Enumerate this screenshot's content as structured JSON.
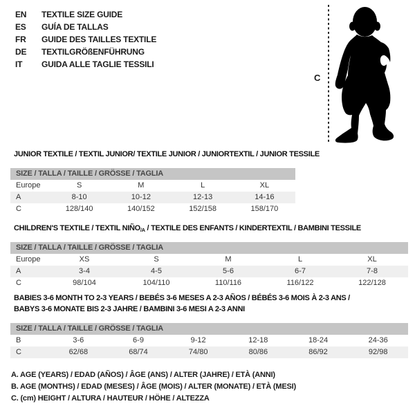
{
  "header": {
    "languages": [
      {
        "code": "EN",
        "label": "TEXTILE SIZE GUIDE"
      },
      {
        "code": "ES",
        "label": "GUÍA DE TALLAS"
      },
      {
        "code": "FR",
        "label": "GUIDE DES TAILLES TEXTILE"
      },
      {
        "code": "DE",
        "label": "TEXTILGRÖßENFÜHRUNG"
      },
      {
        "code": "IT",
        "label": "GUIDA ALLE TAGLIE TESSILI"
      }
    ]
  },
  "figure": {
    "height_label": "C",
    "silhouette": "baby-toddler-silhouette"
  },
  "tables": [
    {
      "title": "JUNIOR TEXTILE / TEXTIL JUNIOR/ TEXTILE JUNIOR / JUNIORTEXTIL / JUNIOR TESSILE",
      "size_header": "SIZE / TALLA / TAILLE / GRÖSSE / TAGLIA",
      "rows": [
        {
          "label": "Europe",
          "values": [
            "S",
            "M",
            "L",
            "XL"
          ]
        },
        {
          "label": "A",
          "values": [
            "8-10",
            "10-12",
            "12-13",
            "14-16"
          ]
        },
        {
          "label": "C",
          "values": [
            "128/140",
            "140/152",
            "152/158",
            "158/170"
          ]
        }
      ]
    },
    {
      "title_pre": "CHILDREN'S TEXTILE / TEXTIL NIÑO",
      "title_sub": "/A",
      "title_post": " / TEXTILE DES ENFANTS / KINDERTEXTIL / BAMBINI TESSILE",
      "size_header": "SIZE / TALLA / TAILLE / GRÖSSE / TAGLIA",
      "rows": [
        {
          "label": "Europe",
          "values": [
            "XS",
            "S",
            "M",
            "L",
            "XL"
          ]
        },
        {
          "label": "A",
          "values": [
            "3-4",
            "4-5",
            "5-6",
            "6-7",
            "7-8"
          ]
        },
        {
          "label": "C",
          "values": [
            "98/104",
            "104/110",
            "110/116",
            "116/122",
            "122/128"
          ]
        }
      ]
    },
    {
      "title_line1": "BABIES 3-6 MONTH TO 2-3 YEARS / BEBÉS 3-6 MESES A 2-3 AÑOS / BÉBÉS 3-6 MOIS À 2-3 ANS /",
      "title_line2": "BABYS 3-6 MONATE BIS 2-3 JAHRE / BAMBINI 3-6 MESI A 2-3 ANNI",
      "size_header": "SIZE / TALLA / TAILLE / GRÖSSE / TAGLIA",
      "rows": [
        {
          "label": "B",
          "values": [
            "3-6",
            "6-9",
            "9-12",
            "12-18",
            "18-24",
            "24-36"
          ]
        },
        {
          "label": "C",
          "values": [
            "62/68",
            "68/74",
            "74/80",
            "80/86",
            "86/92",
            "92/98"
          ]
        }
      ]
    }
  ],
  "notes": [
    "A. AGE (YEARS) / EDAD (AÑOS) / ÂGE (ANS) / ALTER (JAHRE) / ETÀ (ANNI)",
    "B. AGE (MONTHS) / EDAD (MESES) / ÂGE (MOIS) / ALTER (MONATE) / ETÀ (MESI)",
    "C. (cm) HEIGHT / ALTURA / HAUTEUR / HÖHE / ALTEZZA"
  ],
  "colors": {
    "header_bar": "#c5c5c5",
    "row_stripe": "#efefef",
    "silhouette": "#000000"
  }
}
